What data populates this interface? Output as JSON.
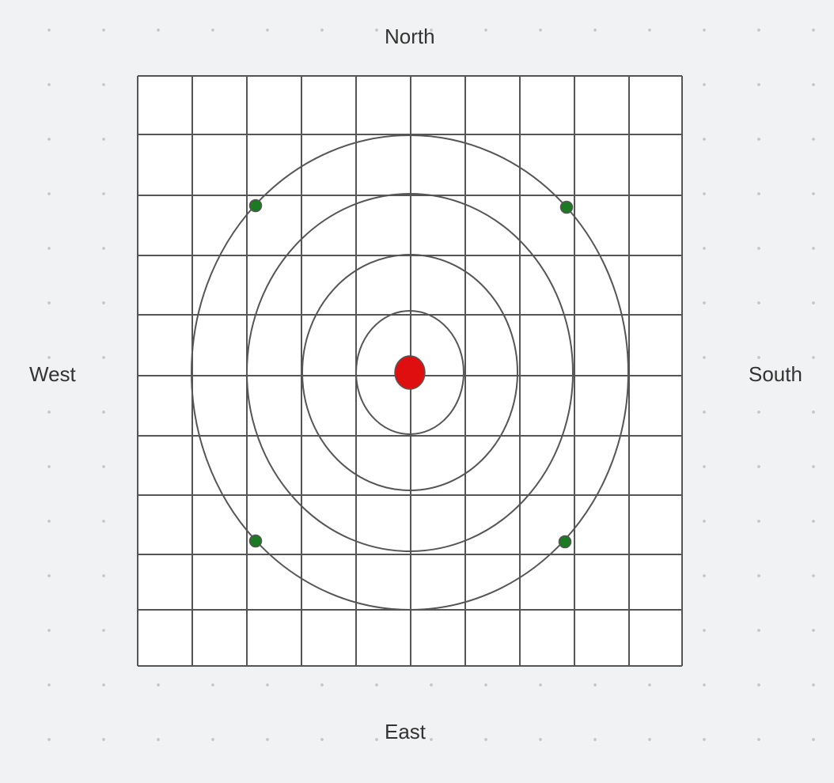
{
  "labels": {
    "north": "North",
    "east": "East",
    "west": "West",
    "south": "South"
  },
  "colors": {
    "background": "#f1f2f4",
    "grid_fill": "#ffffff",
    "line": "#555555",
    "center_marker": "#e00f0f",
    "point_marker": "#1b7a22"
  },
  "grid": {
    "columns": 10,
    "rows": 10
  },
  "rings": {
    "count": 4
  },
  "markers": {
    "center": "center-marker",
    "points": [
      "north-west",
      "north-south",
      "east-west",
      "east-south"
    ]
  }
}
